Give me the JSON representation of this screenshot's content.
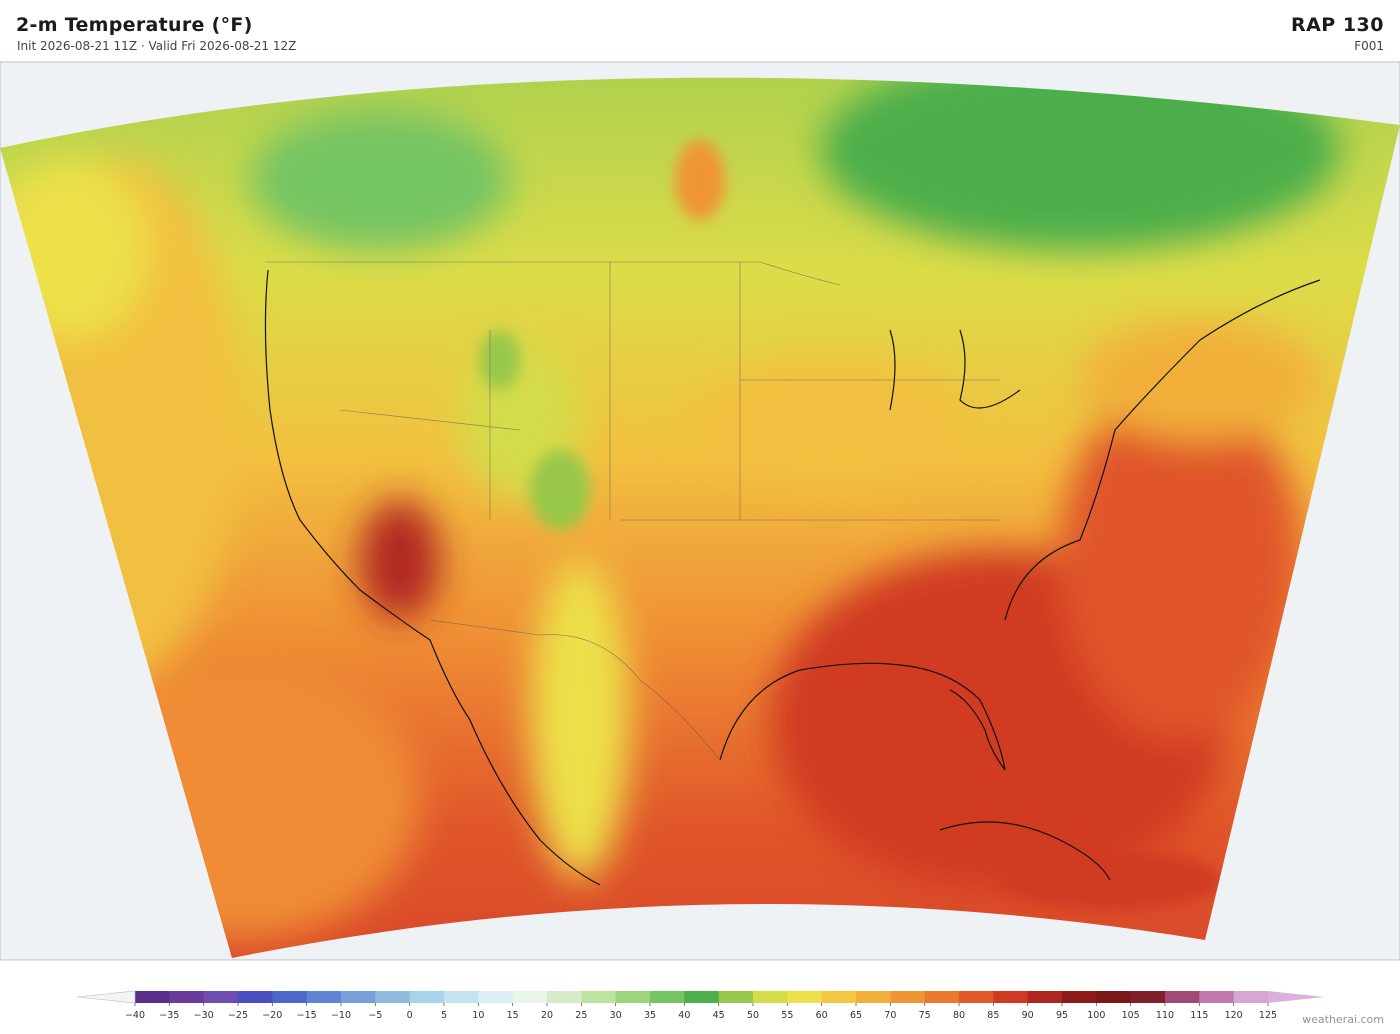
{
  "header": {
    "title": "2-m Temperature  (°F)",
    "subtitle": "Init 2026-08-21 11Z  ·  Valid Fri 2026-08-21 12Z",
    "model": "RAP  130",
    "forecast_hour": "F001"
  },
  "colorbar": {
    "ticks": [
      {
        "value": -40,
        "label": "−40"
      },
      {
        "value": -35,
        "label": "−35"
      },
      {
        "value": -30,
        "label": "−30"
      },
      {
        "value": -25,
        "label": "−25"
      },
      {
        "value": -20,
        "label": "−20"
      },
      {
        "value": -15,
        "label": "−15"
      },
      {
        "value": -10,
        "label": "−10"
      },
      {
        "value": -5,
        "label": "−5"
      },
      0,
      5,
      10,
      15,
      20,
      25,
      30,
      35,
      40,
      45,
      50,
      55,
      60,
      65,
      70,
      75,
      80,
      85,
      90,
      95,
      100,
      105,
      110,
      115,
      120,
      125
    ],
    "colors": [
      "#5a2d8c",
      "#6a3a9c",
      "#6f4cb0",
      "#4a4fc0",
      "#4e67cc",
      "#6083d4",
      "#78a0da",
      "#8fbbe0",
      "#a8d3ea",
      "#c4e3f0",
      "#daeff4",
      "#e8f5e8",
      "#d6ecc8",
      "#bde3a0",
      "#9dd57e",
      "#74c463",
      "#4cae4c",
      "#98c84a",
      "#d4dc48",
      "#ede04a",
      "#f4c842",
      "#f2b03a",
      "#f09535",
      "#eb7a30",
      "#e3582a",
      "#d03a22",
      "#b02520",
      "#8e1a1a",
      "#7a1818",
      "#7e1f2a",
      "#a04a78",
      "#c07aae",
      "#d8a6d0"
    ],
    "under_color": "#f4f4f4",
    "over_color": "#dcb0dc"
  },
  "footer": {
    "credit": "weatherai.com"
  }
}
